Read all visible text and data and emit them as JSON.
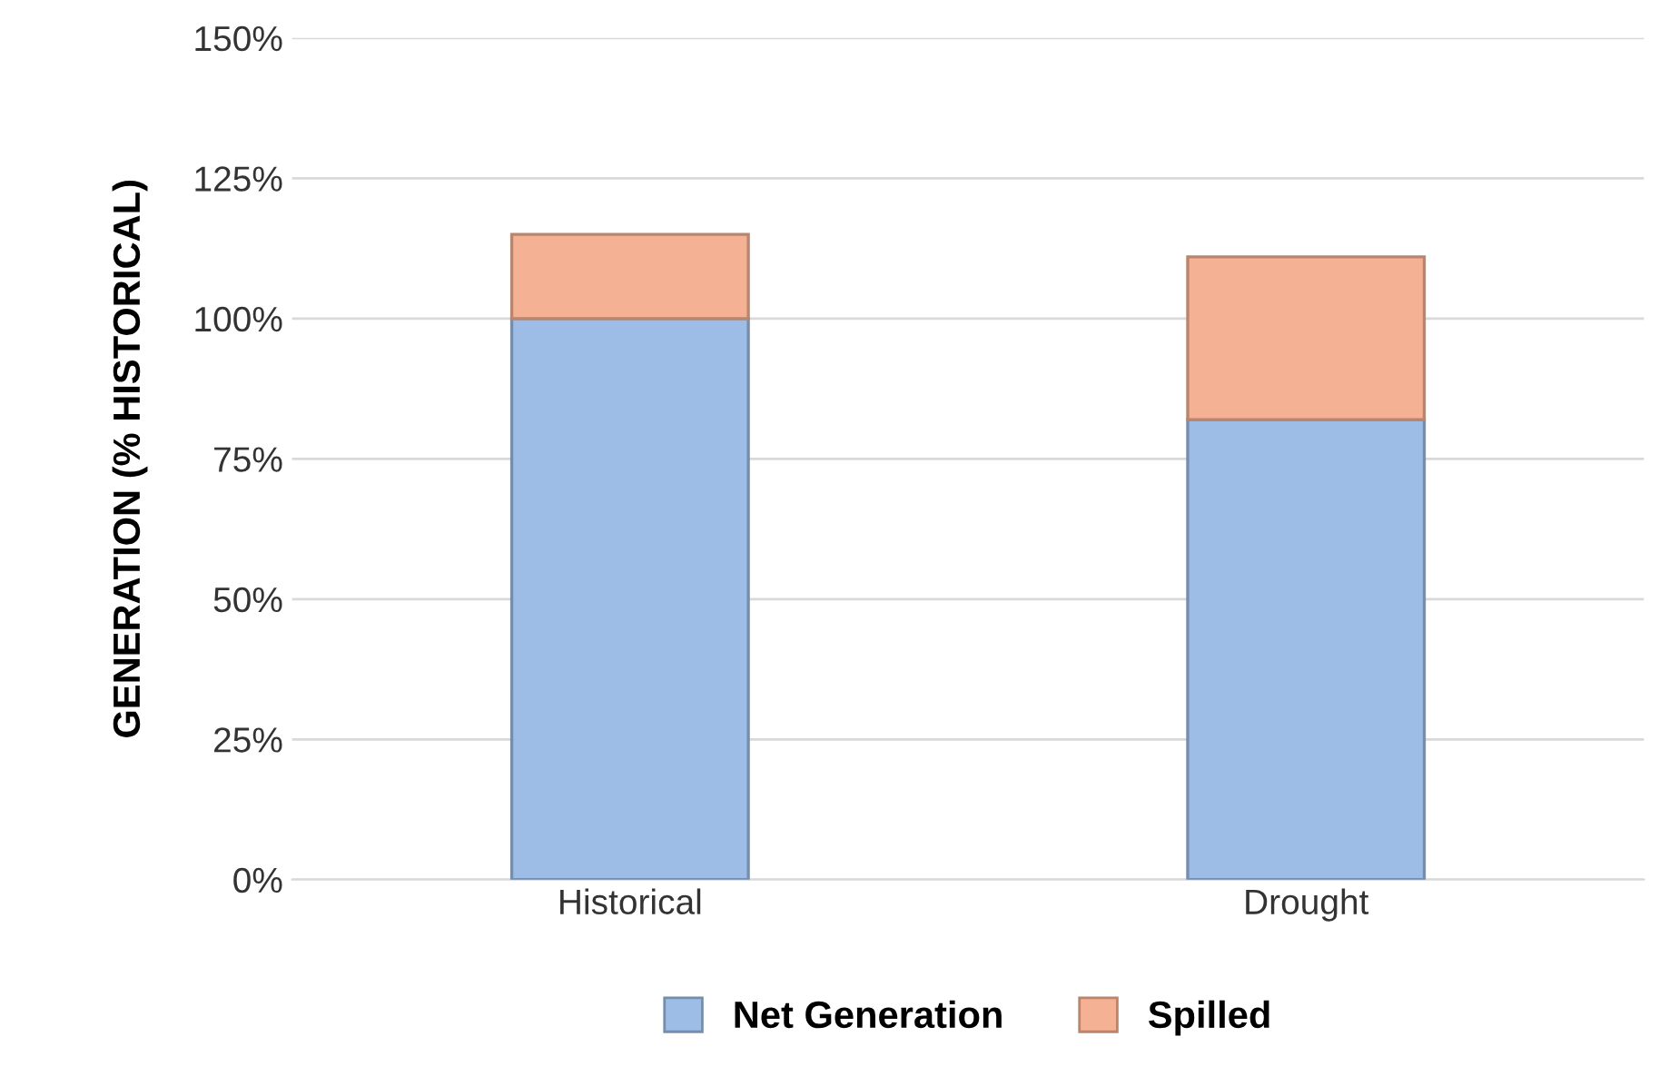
{
  "chart_data": {
    "type": "bar",
    "stacked": true,
    "ylabel": "GENERATION (% HISTORICAL)",
    "categories": [
      "Historical",
      "Drought"
    ],
    "series": [
      {
        "name": "Net Generation",
        "color": "#9dbde6",
        "values": [
          100,
          82
        ]
      },
      {
        "name": "Spilled",
        "color": "#f5b193",
        "values": [
          15,
          29
        ]
      }
    ],
    "ylim": [
      0,
      150
    ],
    "yticks": [
      {
        "value": 0,
        "label": "0%"
      },
      {
        "value": 25,
        "label": "25%"
      },
      {
        "value": 50,
        "label": "50%"
      },
      {
        "value": 75,
        "label": "75%"
      },
      {
        "value": 100,
        "label": "100%"
      },
      {
        "value": 125,
        "label": "125%"
      },
      {
        "value": 150,
        "label": "150%"
      }
    ],
    "grid": "y",
    "legend": "bottom"
  }
}
